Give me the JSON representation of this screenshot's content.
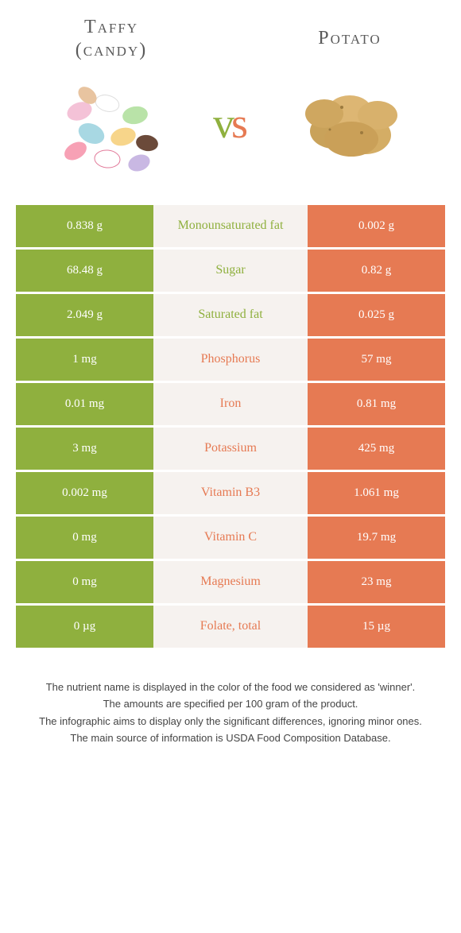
{
  "colors": {
    "left": "#8fb03e",
    "right": "#e67a53",
    "mid_bg": "#f6f2ef"
  },
  "foods": {
    "left": {
      "title_line1": "Taffy",
      "title_line2": "(candy)"
    },
    "right": {
      "title": "Potato"
    }
  },
  "vs": {
    "v": "v",
    "s": "s"
  },
  "rows": [
    {
      "left": "0.838 g",
      "label": "Monounsaturated fat",
      "right": "0.002 g",
      "winner": "left"
    },
    {
      "left": "68.48 g",
      "label": "Sugar",
      "right": "0.82 g",
      "winner": "left"
    },
    {
      "left": "2.049 g",
      "label": "Saturated fat",
      "right": "0.025 g",
      "winner": "left"
    },
    {
      "left": "1 mg",
      "label": "Phosphorus",
      "right": "57 mg",
      "winner": "right"
    },
    {
      "left": "0.01 mg",
      "label": "Iron",
      "right": "0.81 mg",
      "winner": "right"
    },
    {
      "left": "3 mg",
      "label": "Potassium",
      "right": "425 mg",
      "winner": "right"
    },
    {
      "left": "0.002 mg",
      "label": "Vitamin B3",
      "right": "1.061 mg",
      "winner": "right"
    },
    {
      "left": "0 mg",
      "label": "Vitamin C",
      "right": "19.7 mg",
      "winner": "right"
    },
    {
      "left": "0 mg",
      "label": "Magnesium",
      "right": "23 mg",
      "winner": "right"
    },
    {
      "left": "0 µg",
      "label": "Folate, total",
      "right": "15 µg",
      "winner": "right"
    }
  ],
  "footer": {
    "l1": "The nutrient name is displayed in the color of the food we considered as 'winner'.",
    "l2": "The amounts are specified per 100 gram of the product.",
    "l3": "The infographic aims to display only the significant differences, ignoring minor ones.",
    "l4": "The main source of information is USDA Food Composition Database."
  }
}
